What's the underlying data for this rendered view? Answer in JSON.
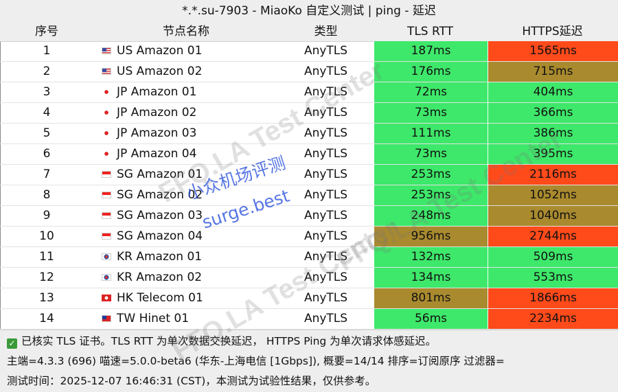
{
  "title": "*.*.su-7903 - MiaoKo 自定义测试 | ping - 延迟",
  "headers": {
    "index": "序号",
    "name": "节点名称",
    "type": "类型",
    "tls_rtt": "TLS RTT",
    "https": "HTTPS延迟"
  },
  "colors": {
    "green": "#3ee86a",
    "olive": "#a98a2e",
    "red": "#ff4a1a"
  },
  "rows": [
    {
      "idx": "1",
      "flag": "us",
      "name": "US Amazon 01",
      "type": "AnyTLS",
      "tls": "187ms",
      "tls_color": "green",
      "https": "1565ms",
      "https_color": "red"
    },
    {
      "idx": "2",
      "flag": "us",
      "name": "US Amazon 02",
      "type": "AnyTLS",
      "tls": "176ms",
      "tls_color": "green",
      "https": "715ms",
      "https_color": "olive"
    },
    {
      "idx": "3",
      "flag": "jp",
      "name": "JP Amazon 01",
      "type": "AnyTLS",
      "tls": "72ms",
      "tls_color": "green",
      "https": "404ms",
      "https_color": "green"
    },
    {
      "idx": "4",
      "flag": "jp",
      "name": "JP Amazon 02",
      "type": "AnyTLS",
      "tls": "73ms",
      "tls_color": "green",
      "https": "366ms",
      "https_color": "green"
    },
    {
      "idx": "5",
      "flag": "jp",
      "name": "JP Amazon 03",
      "type": "AnyTLS",
      "tls": "111ms",
      "tls_color": "green",
      "https": "386ms",
      "https_color": "green"
    },
    {
      "idx": "6",
      "flag": "jp",
      "name": "JP Amazon 04",
      "type": "AnyTLS",
      "tls": "73ms",
      "tls_color": "green",
      "https": "395ms",
      "https_color": "green"
    },
    {
      "idx": "7",
      "flag": "sg",
      "name": "SG Amazon 01",
      "type": "AnyTLS",
      "tls": "253ms",
      "tls_color": "green",
      "https": "2116ms",
      "https_color": "red"
    },
    {
      "idx": "8",
      "flag": "sg",
      "name": "SG Amazon 02",
      "type": "AnyTLS",
      "tls": "253ms",
      "tls_color": "green",
      "https": "1052ms",
      "https_color": "olive"
    },
    {
      "idx": "9",
      "flag": "sg",
      "name": "SG Amazon 03",
      "type": "AnyTLS",
      "tls": "248ms",
      "tls_color": "green",
      "https": "1040ms",
      "https_color": "olive"
    },
    {
      "idx": "10",
      "flag": "sg",
      "name": "SG Amazon 04",
      "type": "AnyTLS",
      "tls": "956ms",
      "tls_color": "olive",
      "https": "2744ms",
      "https_color": "red"
    },
    {
      "idx": "11",
      "flag": "kr",
      "name": "KR Amazon 01",
      "type": "AnyTLS",
      "tls": "132ms",
      "tls_color": "green",
      "https": "509ms",
      "https_color": "green"
    },
    {
      "idx": "12",
      "flag": "kr",
      "name": "KR Amazon 02",
      "type": "AnyTLS",
      "tls": "134ms",
      "tls_color": "green",
      "https": "553ms",
      "https_color": "green"
    },
    {
      "idx": "13",
      "flag": "hk",
      "name": "HK Telecom 01",
      "type": "AnyTLS",
      "tls": "801ms",
      "tls_color": "olive",
      "https": "1866ms",
      "https_color": "red"
    },
    {
      "idx": "14",
      "flag": "tw",
      "name": "TW Hinet 01",
      "type": "AnyTLS",
      "tls": "56ms",
      "tls_color": "green",
      "https": "2234ms",
      "https_color": "red"
    }
  ],
  "footer": {
    "line1": "已核实 TLS 证书。TLS RTT 为单次数据交换延迟， HTTPS Ping 为单次请求体感延迟。",
    "line2": "主端=4.3.3 (696) 喵速=5.0.0-beta6 (华东-上海电信 [1Gbps]), 概要=14/14 排序=订阅原序 过滤器=",
    "line3": "测试时间：2025-12-07 16:46:31 (CST)，本测试为试验性结果，仅供参考。"
  },
  "watermarks": {
    "wm_text": "FFQ.LA Test Center",
    "stamp_line1": "小众机场评测",
    "stamp_line2": "surge.best"
  }
}
